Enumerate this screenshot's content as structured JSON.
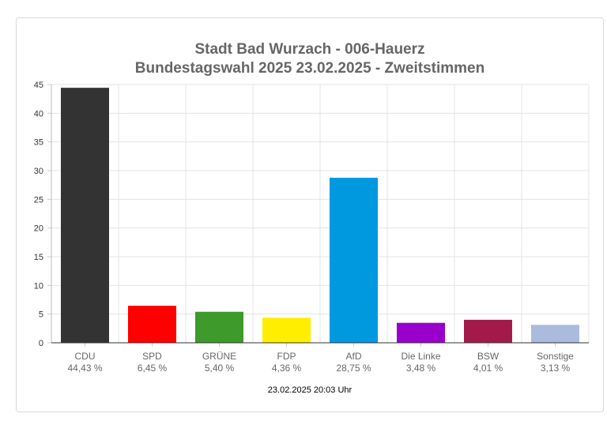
{
  "chart_data": {
    "type": "bar",
    "title": "Stadt Bad Wurzach - 006-Hauerz",
    "subtitle": "Bundestagswahl 2025 23.02.2025  - Zweitstimmen",
    "categories": [
      "CDU",
      "SPD",
      "GRÜNE",
      "FDP",
      "AfD",
      "Die Linke",
      "BSW",
      "Sonstige"
    ],
    "value_labels": [
      "44,43 %",
      "6,45 %",
      "5,40 %",
      "4,36 %",
      "28,75 %",
      "3,48 %",
      "4,01 %",
      "3,13 %"
    ],
    "values": [
      44.43,
      6.45,
      5.4,
      4.36,
      28.75,
      3.48,
      4.01,
      3.13
    ],
    "colors": [
      "#333333",
      "#ff0000",
      "#3d9a2b",
      "#ffee00",
      "#0099e0",
      "#9900cc",
      "#a31a4a",
      "#aabbdd"
    ],
    "ylim": [
      0,
      45
    ],
    "yticks": [
      0,
      5,
      10,
      15,
      20,
      25,
      30,
      35,
      40,
      45
    ],
    "grid": true,
    "legend": "none"
  },
  "footer": "23.02.2025 20:03 Uhr"
}
